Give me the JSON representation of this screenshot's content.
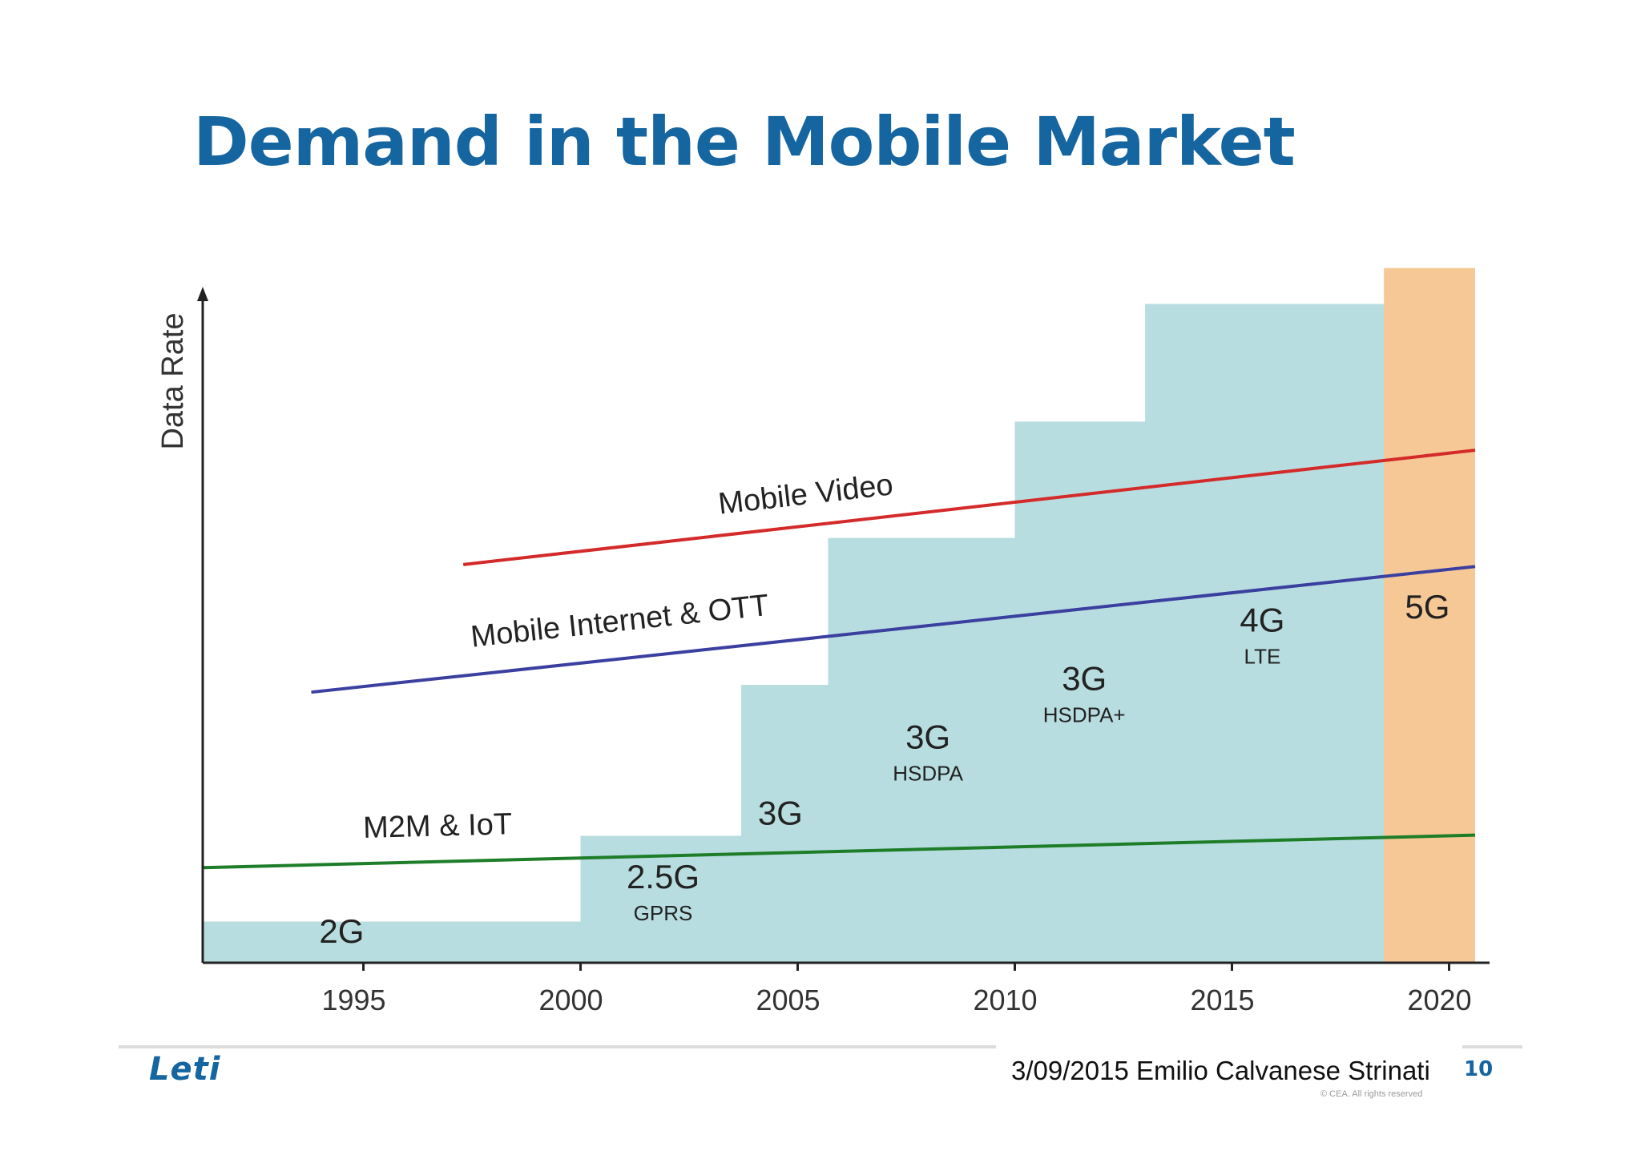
{
  "slide": {
    "title": "Demand in the Mobile Market",
    "footer": "3/09/2015 Emilio Calvanese Strinati",
    "page_number": "10",
    "logo_text": "Leti",
    "copyright": "© CEA. All rights reserved"
  },
  "chart_data": {
    "type": "area",
    "title": "",
    "xlabel": "",
    "ylabel": "Data Rate",
    "x_ticks": [
      1995,
      2000,
      2005,
      2010,
      2015,
      2020
    ],
    "xlim": [
      1991.3,
      2020.6
    ],
    "ylim": [
      0,
      100
    ],
    "y_ticks_shown": false,
    "grid": false,
    "steps": [
      {
        "start": 1991.3,
        "end": 2000.0,
        "level": 6.2,
        "label": "2G",
        "sublabel": "",
        "label_x": 1994.5,
        "label_y": 3.0
      },
      {
        "start": 2000.0,
        "end": 2003.7,
        "level": 19.1,
        "label": "2.5G",
        "sublabel": "GPRS",
        "label_x": 2001.9,
        "label_y": 11.2
      },
      {
        "start": 2003.7,
        "end": 2005.7,
        "level": 41.8,
        "label": "3G",
        "sublabel": "",
        "label_x": 2004.6,
        "label_y": 20.8
      },
      {
        "start": 2005.7,
        "end": 2010.0,
        "level": 63.9,
        "label": "3G",
        "sublabel": "HSDPA",
        "label_x": 2008.0,
        "label_y": 32.2
      },
      {
        "start": 2010.0,
        "end": 2013.0,
        "level": 81.4,
        "label": "3G",
        "sublabel": "HSDPA+",
        "label_x": 2011.6,
        "label_y": 41.0
      },
      {
        "start": 2013.0,
        "end": 2018.5,
        "level": 99.1,
        "label": "4G",
        "sublabel": "LTE",
        "label_x": 2015.7,
        "label_y": 49.8
      }
    ],
    "highlight_step": {
      "start": 2018.5,
      "end": 2020.6,
      "level": 104.5,
      "label": "5G",
      "sublabel": "",
      "label_x": 2019.5,
      "label_y": 51.8,
      "color": "#f5c896"
    },
    "step_color": "#b8dde0",
    "series": [
      {
        "name": "Mobile Video",
        "color": "#d42a2a",
        "x": [
          1997.3,
          2020.6
        ],
        "y": [
          59.9,
          77.1
        ],
        "label_x": 2003.2,
        "label_y": 67.5
      },
      {
        "name": "Mobile Internet & OTT",
        "color": "#3b3fa0",
        "x": [
          1993.8,
          2020.6
        ],
        "y": [
          40.7,
          59.6
        ],
        "label_x": 1997.5,
        "label_y": 47.5
      },
      {
        "name": "M2M & IoT",
        "color": "#1e7d28",
        "x": [
          1991.3,
          2020.6
        ],
        "y": [
          14.3,
          19.2
        ],
        "label_x": 1995.0,
        "label_y": 18.8
      }
    ]
  }
}
